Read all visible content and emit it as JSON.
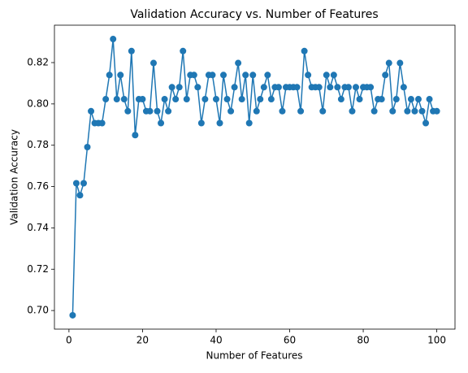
{
  "chart_data": {
    "type": "line",
    "title": "Validation Accuracy vs. Number of Features",
    "x_label": "Number of Features",
    "y_label": "Validation Accuracy",
    "x": [
      1,
      2,
      3,
      4,
      5,
      6,
      7,
      8,
      9,
      10,
      11,
      12,
      13,
      14,
      15,
      16,
      17,
      18,
      19,
      20,
      21,
      22,
      23,
      24,
      25,
      26,
      27,
      28,
      29,
      30,
      31,
      32,
      33,
      34,
      35,
      36,
      37,
      38,
      39,
      40,
      41,
      42,
      43,
      44,
      45,
      46,
      47,
      48,
      49,
      50,
      51,
      52,
      53,
      54,
      55,
      56,
      57,
      58,
      59,
      60,
      61,
      62,
      63,
      64,
      65,
      66,
      67,
      68,
      69,
      70,
      71,
      72,
      73,
      74,
      75,
      76,
      77,
      78,
      79,
      80,
      81,
      82,
      83,
      84,
      85,
      86,
      87,
      88,
      89,
      90,
      91,
      92,
      93,
      94,
      95,
      96,
      97,
      98,
      99,
      100
    ],
    "series": [
      {
        "name": "Validation Accuracy",
        "color": "#1f77b4",
        "values": [
          0.6977,
          0.7616,
          0.7558,
          0.7616,
          0.7791,
          0.7965,
          0.7907,
          0.7907,
          0.7907,
          0.8023,
          0.814,
          0.8314,
          0.8023,
          0.814,
          0.8023,
          0.7965,
          0.8256,
          0.7849,
          0.8023,
          0.8023,
          0.7965,
          0.7965,
          0.8198,
          0.7965,
          0.7907,
          0.8023,
          0.7965,
          0.8081,
          0.8023,
          0.8081,
          0.8256,
          0.8023,
          0.814,
          0.814,
          0.8081,
          0.7907,
          0.8023,
          0.814,
          0.814,
          0.8023,
          0.7907,
          0.814,
          0.8023,
          0.7965,
          0.8081,
          0.8198,
          0.8023,
          0.814,
          0.7907,
          0.814,
          0.7965,
          0.8023,
          0.8081,
          0.814,
          0.8023,
          0.8081,
          0.8081,
          0.7965,
          0.8081,
          0.8081,
          0.8081,
          0.8081,
          0.7965,
          0.8256,
          0.814,
          0.8081,
          0.8081,
          0.8081,
          0.7965,
          0.814,
          0.8081,
          0.814,
          0.8081,
          0.8023,
          0.8081,
          0.8081,
          0.7965,
          0.8081,
          0.8023,
          0.8081,
          0.8081,
          0.8081,
          0.7965,
          0.8023,
          0.8023,
          0.814,
          0.8198,
          0.7965,
          0.8023,
          0.8198,
          0.8081,
          0.7965,
          0.8023,
          0.7965,
          0.8023,
          0.7965,
          0.7907,
          0.8023,
          0.7965,
          0.7965
        ]
      }
    ],
    "xlim": [
      -3.95,
      104.95
    ],
    "ylim": [
      0.691,
      0.8381
    ],
    "xticks": [
      0,
      20,
      40,
      60,
      80,
      100
    ],
    "yticks": [
      {
        "value": 0.7,
        "label": "0.70"
      },
      0.72,
      0.74,
      0.76,
      0.78,
      {
        "value": 0.8,
        "label": "0.80"
      },
      0.82
    ]
  }
}
